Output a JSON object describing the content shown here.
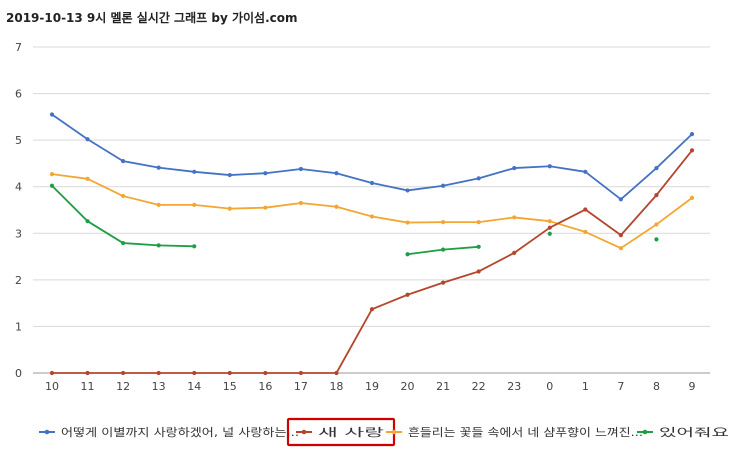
{
  "chart_data": {
    "type": "line",
    "title": "2019-10-13 9시 멜론 실시간 그래프 by 가이섬.com",
    "xlabel": "",
    "ylabel": "",
    "categories": [
      "10",
      "11",
      "12",
      "13",
      "14",
      "15",
      "16",
      "17",
      "18",
      "19",
      "20",
      "21",
      "22",
      "23",
      "0",
      "1",
      "7",
      "8",
      "9"
    ],
    "ylim": [
      0,
      7
    ],
    "yticks": [
      0,
      1,
      2,
      3,
      4,
      5,
      6,
      7
    ],
    "grid": "horizontal",
    "legend_position": "bottom",
    "highlighted_legend_entry": "새 사랑",
    "series": [
      {
        "name": "어떻게 이별까지 사랑하겠어, 널 사랑하는...",
        "color": "#4472c4",
        "values": [
          5.55,
          5.02,
          4.55,
          4.41,
          4.32,
          4.25,
          4.29,
          4.38,
          4.29,
          4.08,
          3.92,
          4.02,
          4.18,
          4.4,
          4.44,
          4.32,
          3.73,
          4.4,
          5.13
        ]
      },
      {
        "name": "새 사랑",
        "color": "#b5462d",
        "values": [
          0,
          0,
          0,
          0,
          0,
          0,
          0,
          0,
          0,
          1.37,
          1.68,
          1.94,
          2.18,
          2.58,
          3.12,
          3.51,
          2.96,
          3.82,
          4.78
        ]
      },
      {
        "name": "흔들리는 꽃들 속에서 네 샴푸향이 느껴진...",
        "color": "#f4a634",
        "values": [
          4.27,
          4.17,
          3.8,
          3.61,
          3.61,
          3.53,
          3.55,
          3.65,
          3.57,
          3.36,
          3.23,
          3.24,
          3.24,
          3.34,
          3.26,
          3.03,
          2.68,
          3.19,
          3.76
        ]
      },
      {
        "name": "있어줘요",
        "color": "#1e9e45",
        "values": [
          4.02,
          3.26,
          2.79,
          2.74,
          2.72,
          null,
          null,
          null,
          null,
          null,
          2.55,
          2.65,
          2.71,
          null,
          2.99,
          null,
          null,
          2.87,
          null
        ]
      }
    ]
  },
  "colors": {
    "background": "#ffffff",
    "grid": "#d9d9d9",
    "highlight_box": "#d00000"
  }
}
